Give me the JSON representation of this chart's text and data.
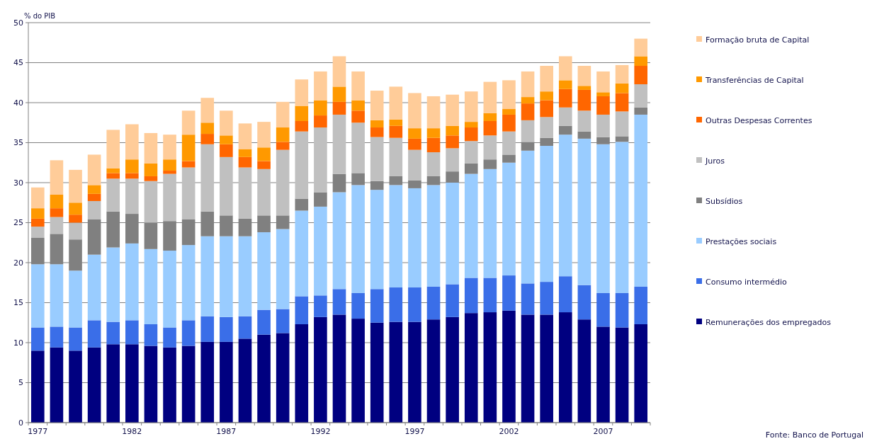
{
  "chart_data": {
    "type": "bar",
    "stacked": true,
    "ylabel": "% do PIB",
    "ylim": [
      0,
      50
    ],
    "yticks": [
      0,
      5,
      10,
      15,
      20,
      25,
      30,
      35,
      40,
      45,
      50
    ],
    "grid": "y",
    "legend": "right",
    "categories": [
      "1977",
      null,
      null,
      null,
      null,
      "1982",
      null,
      null,
      null,
      null,
      "1987",
      null,
      null,
      null,
      null,
      "1992",
      null,
      null,
      null,
      null,
      "1997",
      null,
      null,
      null,
      null,
      "2002",
      null,
      null,
      null,
      null,
      "2007",
      null,
      null
    ],
    "series": [
      {
        "name": "Remunerações dos empregados",
        "color": "#000080",
        "values": [
          9.0,
          9.4,
          9.0,
          9.4,
          9.8,
          9.8,
          9.6,
          9.4,
          9.6,
          10.1,
          10.1,
          10.5,
          11.0,
          11.2,
          12.3,
          13.2,
          13.5,
          13.0,
          12.5,
          12.6,
          12.6,
          12.9,
          13.2,
          13.7,
          13.8,
          14.0,
          13.5,
          13.5,
          13.8,
          12.9,
          12.0,
          11.9,
          12.3
        ]
      },
      {
        "name": "Consumo intermédio",
        "color": "#3a6ee8",
        "values": [
          2.9,
          2.6,
          2.9,
          3.4,
          2.8,
          3.0,
          2.7,
          2.5,
          3.2,
          3.2,
          3.1,
          2.8,
          3.1,
          3.0,
          3.5,
          2.7,
          3.2,
          3.2,
          4.2,
          4.3,
          4.3,
          4.1,
          4.1,
          4.4,
          4.3,
          4.4,
          3.9,
          4.1,
          4.5,
          4.3,
          4.2,
          4.3,
          4.7
        ]
      },
      {
        "name": "Prestações sociais",
        "color": "#99ccff",
        "values": [
          7.9,
          7.8,
          7.1,
          8.2,
          9.3,
          9.6,
          9.4,
          9.6,
          9.4,
          10.0,
          10.1,
          10.0,
          9.7,
          10.0,
          10.7,
          11.1,
          12.1,
          13.5,
          12.4,
          12.8,
          12.4,
          12.7,
          12.7,
          13.0,
          13.6,
          14.1,
          16.6,
          17.0,
          17.7,
          18.3,
          18.6,
          18.9,
          21.5
        ]
      },
      {
        "name": "Subsídios",
        "color": "#808080",
        "values": [
          3.3,
          3.8,
          3.9,
          4.4,
          4.5,
          3.7,
          3.3,
          3.7,
          3.2,
          3.1,
          2.6,
          2.2,
          2.1,
          1.7,
          1.5,
          1.8,
          2.3,
          1.5,
          1.1,
          1.1,
          1.0,
          1.1,
          1.4,
          1.3,
          1.2,
          1.0,
          1.1,
          1.0,
          1.1,
          0.9,
          0.9,
          0.7,
          0.9
        ]
      },
      {
        "name": "Juros",
        "color": "#c0c0c0",
        "values": [
          1.4,
          2.1,
          2.1,
          2.3,
          4.1,
          4.4,
          5.2,
          5.9,
          6.5,
          8.4,
          7.3,
          6.4,
          5.8,
          8.2,
          8.4,
          8.1,
          7.4,
          6.3,
          5.5,
          4.8,
          3.8,
          3.0,
          2.9,
          2.8,
          3.0,
          2.9,
          2.7,
          2.6,
          2.3,
          2.6,
          2.8,
          3.1,
          2.9
        ]
      },
      {
        "name": "Outras Despesas Correntes",
        "color": "#ff6600",
        "values": [
          1.0,
          1.1,
          1.0,
          0.9,
          0.7,
          0.7,
          0.6,
          0.4,
          0.8,
          1.3,
          1.6,
          1.3,
          1.0,
          1.0,
          1.3,
          1.5,
          1.6,
          1.5,
          1.2,
          1.5,
          1.4,
          1.8,
          1.6,
          1.7,
          1.8,
          2.1,
          2.1,
          2.1,
          2.3,
          2.6,
          2.3,
          2.3,
          2.3
        ]
      },
      {
        "name": "Transferências de Capital",
        "color": "#ff9900",
        "values": [
          1.3,
          1.7,
          1.5,
          1.1,
          0.6,
          1.7,
          1.6,
          1.4,
          3.3,
          1.4,
          1.1,
          1.0,
          1.7,
          1.8,
          1.9,
          1.9,
          1.9,
          1.3,
          0.9,
          0.8,
          1.3,
          1.2,
          1.2,
          0.7,
          1.0,
          0.7,
          0.8,
          1.1,
          1.1,
          0.5,
          0.5,
          1.2,
          1.2
        ]
      },
      {
        "name": "Formação bruta de Capital",
        "color": "#ffcc99",
        "values": [
          2.6,
          4.3,
          4.1,
          3.8,
          4.8,
          4.4,
          3.8,
          3.1,
          3.0,
          3.1,
          3.1,
          3.2,
          3.2,
          3.2,
          3.3,
          3.6,
          3.8,
          3.6,
          3.7,
          4.1,
          4.4,
          4.0,
          3.9,
          3.8,
          3.9,
          3.6,
          3.2,
          3.2,
          3.0,
          2.5,
          2.6,
          2.3,
          2.2
        ]
      }
    ],
    "annotations": [
      "Fonte: Banco de Portugal"
    ]
  }
}
